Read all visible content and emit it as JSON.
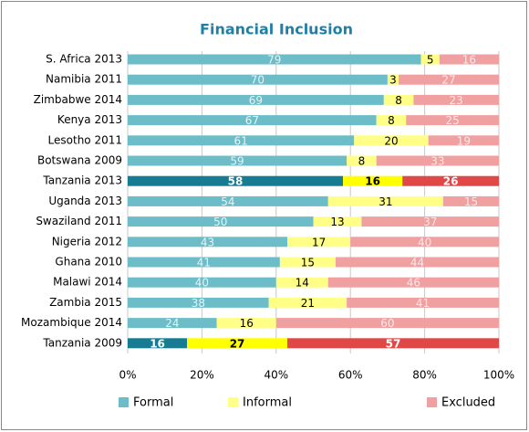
{
  "chart_data": {
    "type": "stacked_bar_horizontal",
    "title": "Financial Inclusion",
    "categories": [
      "S. Africa 2013",
      "Namibia 2011",
      "Zimbabwe 2014",
      "Kenya 2013",
      "Lesotho 2011",
      "Botswana 2009",
      "Tanzania 2013",
      "Uganda 2013",
      "Swaziland 2011",
      "Nigeria 2012",
      "Ghana 2010",
      "Malawi 2014",
      "Zambia 2015",
      "Mozambique 2014",
      "Tanzania 2009"
    ],
    "highlighted": [
      "Tanzania 2013",
      "Tanzania 2009"
    ],
    "series": [
      {
        "name": "Formal",
        "color": "#6cbdc8",
        "highlight_color": "#177c92",
        "label_color": "#e4f4f6",
        "values": [
          79,
          70,
          69,
          67,
          61,
          59,
          58,
          54,
          50,
          43,
          41,
          40,
          38,
          24,
          16
        ]
      },
      {
        "name": "Informal",
        "color": "#ffff88",
        "highlight_color": "#ffff00",
        "label_color": "#000000",
        "values": [
          5,
          3,
          8,
          8,
          20,
          8,
          16,
          31,
          13,
          17,
          15,
          14,
          21,
          16,
          27
        ]
      },
      {
        "name": "Excluded",
        "color": "#f0a0a0",
        "highlight_color": "#e04848",
        "label_color": "#fbe8e8",
        "values": [
          16,
          27,
          23,
          25,
          19,
          33,
          26,
          15,
          37,
          40,
          44,
          46,
          41,
          60,
          57
        ]
      }
    ],
    "xlim": [
      0,
      100
    ],
    "xticks": [
      {
        "value": 0,
        "label": "0%"
      },
      {
        "value": 20,
        "label": "20%"
      },
      {
        "value": 40,
        "label": "40%"
      },
      {
        "value": 60,
        "label": "60%"
      },
      {
        "value": 80,
        "label": "80%"
      },
      {
        "value": 100,
        "label": "100%"
      }
    ],
    "grid": true,
    "legend": "bottom"
  }
}
